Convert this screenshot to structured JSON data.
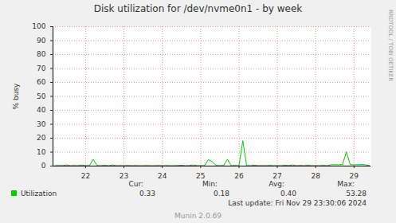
{
  "chart_data": {
    "type": "line",
    "title": "Disk utilization for /dev/nvme0n1 - by week",
    "y_label": "% busy",
    "x": [
      21.2,
      21.3,
      21.4,
      21.5,
      21.6,
      21.7,
      21.8,
      21.9,
      22.0,
      22.1,
      22.2,
      22.3,
      22.4,
      22.5,
      22.6,
      22.7,
      22.8,
      22.9,
      23.0,
      23.1,
      23.2,
      23.3,
      23.4,
      23.5,
      23.6,
      23.7,
      23.8,
      23.9,
      24.0,
      24.1,
      24.2,
      24.3,
      24.4,
      24.5,
      24.6,
      24.7,
      24.8,
      24.9,
      25.0,
      25.1,
      25.2,
      25.3,
      25.4,
      25.5,
      25.6,
      25.7,
      25.8,
      25.9,
      26.0,
      26.1,
      26.2,
      26.3,
      26.4,
      26.5,
      26.6,
      26.7,
      26.8,
      26.9,
      27.0,
      27.1,
      27.2,
      27.3,
      27.4,
      27.5,
      27.6,
      27.7,
      27.8,
      27.9,
      28.0,
      28.1,
      28.2,
      28.3,
      28.4,
      28.5,
      28.6,
      28.7,
      28.8,
      28.9,
      29.0,
      29.1,
      29.2,
      29.3,
      29.4
    ],
    "series": [
      {
        "name": "Utilization",
        "color": "#00cc00",
        "values": [
          0.3,
          0.4,
          0.3,
          0.8,
          0.3,
          0.4,
          0.3,
          0.7,
          0.3,
          0.4,
          4.8,
          0.4,
          0.3,
          0.6,
          0.3,
          0.8,
          0.3,
          0.4,
          0.3,
          0.5,
          0.3,
          0.4,
          0.3,
          0.3,
          0.4,
          0.3,
          0.3,
          0.4,
          0.3,
          0.4,
          0.3,
          0.3,
          0.4,
          0.6,
          0.3,
          0.4,
          0.8,
          0.3,
          0.4,
          0.3,
          4.6,
          3.2,
          0.5,
          0.3,
          0.4,
          4.9,
          0.3,
          0.4,
          0.3,
          18.2,
          0.4,
          0.3,
          0.6,
          0.3,
          0.4,
          0.3,
          0.5,
          0.3,
          0.4,
          0.3,
          0.6,
          0.4,
          0.8,
          0.3,
          0.5,
          0.3,
          0.6,
          0.3,
          0.4,
          0.3,
          0.5,
          0.3,
          0.9,
          1.0,
          0.9,
          1.1,
          10.2,
          1.0,
          0.9,
          1.0,
          1.1,
          0.9,
          0.33
        ]
      }
    ],
    "xlim": [
      21.15,
      29.44
    ],
    "xticks": [
      22,
      23,
      24,
      25,
      26,
      27,
      28,
      29
    ],
    "ylim": [
      0,
      100
    ],
    "yticks": [
      0,
      10,
      20,
      30,
      40,
      50,
      60,
      70,
      80,
      90,
      100
    ],
    "grid": true,
    "legend": "bottom",
    "stats": {
      "headers": [
        "Cur:",
        "Min:",
        "Avg:",
        "Max:"
      ],
      "values": [
        0.33,
        0.18,
        0.4,
        53.28
      ]
    },
    "last_update": "Last update: Fri Nov 29 23:30:06 2024",
    "footer": "Munin 2.0.69",
    "side_text": "RRDTOOL / TOBI OETIKER"
  }
}
